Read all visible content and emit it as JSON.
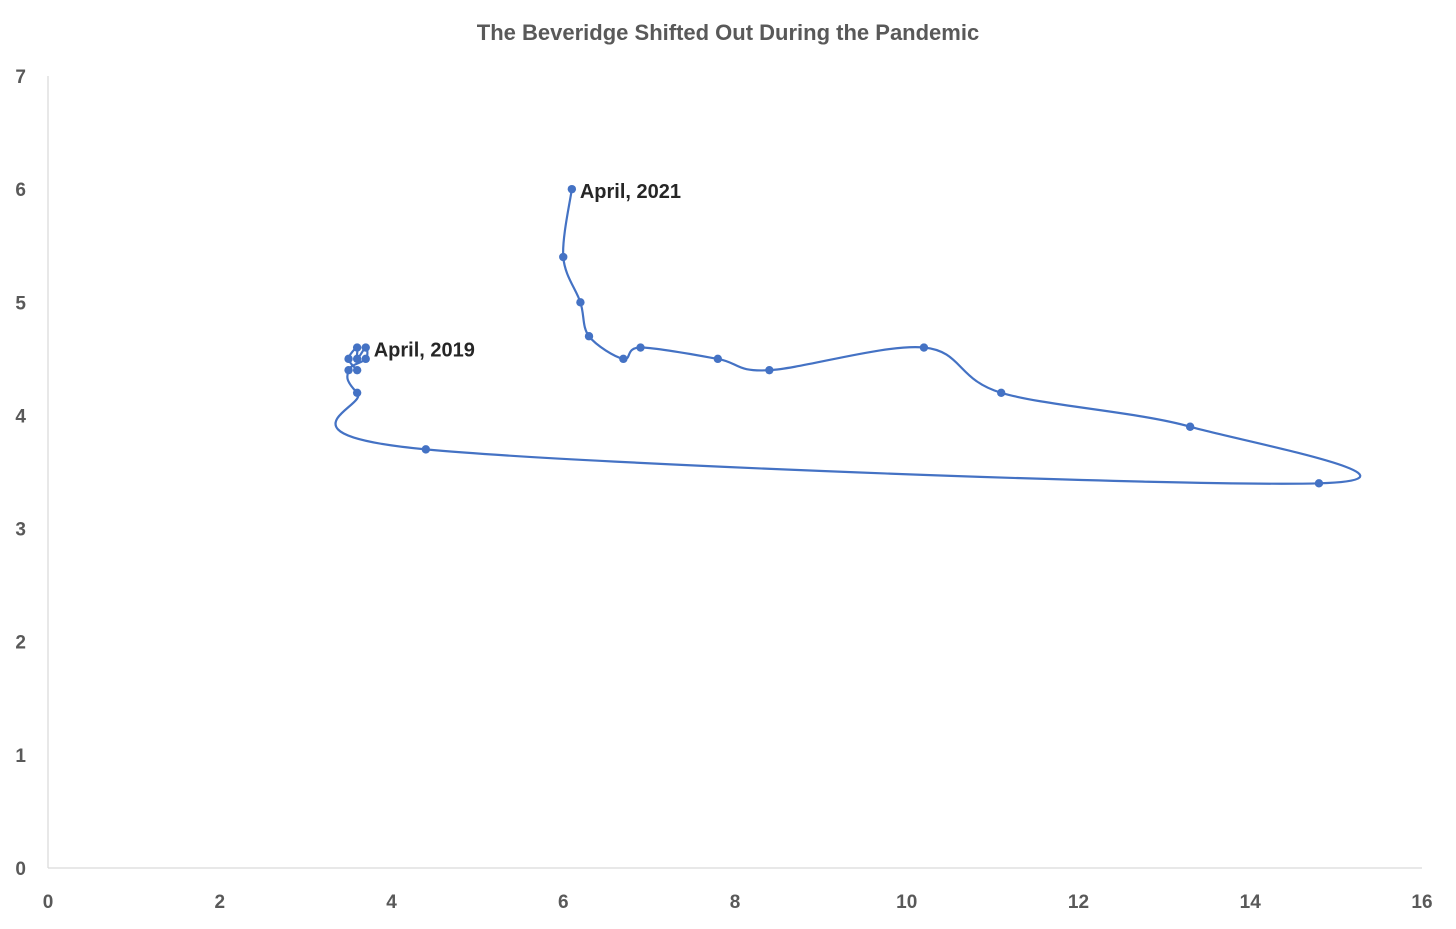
{
  "chart_data": {
    "type": "scatter",
    "title": "The Beveridge Shifted Out During the Pandemic",
    "xlabel": "",
    "ylabel": "",
    "xlim": [
      0,
      16
    ],
    "ylim": [
      0,
      7
    ],
    "x_ticks": [
      "0",
      "2",
      "4",
      "6",
      "8",
      "10",
      "12",
      "14",
      "16"
    ],
    "y_ticks": [
      "0",
      "1",
      "2",
      "3",
      "4",
      "5",
      "6",
      "7"
    ],
    "grid": false,
    "legend": "none",
    "smooth_line": true,
    "series": [
      {
        "color": "#4472c4",
        "points": [
          {
            "x": 3.6,
            "y": 4.4
          },
          {
            "x": 3.5,
            "y": 4.5
          },
          {
            "x": 3.6,
            "y": 4.6
          },
          {
            "x": 3.6,
            "y": 4.5
          },
          {
            "x": 3.7,
            "y": 4.6
          },
          {
            "x": 3.7,
            "y": 4.5
          },
          {
            "x": 3.5,
            "y": 4.4
          },
          {
            "x": 3.6,
            "y": 4.2
          },
          {
            "x": 4.4,
            "y": 3.7
          },
          {
            "x": 14.8,
            "y": 3.4
          },
          {
            "x": 13.3,
            "y": 3.9
          },
          {
            "x": 11.1,
            "y": 4.2
          },
          {
            "x": 10.2,
            "y": 4.6
          },
          {
            "x": 8.4,
            "y": 4.4
          },
          {
            "x": 7.8,
            "y": 4.5
          },
          {
            "x": 6.9,
            "y": 4.6
          },
          {
            "x": 6.7,
            "y": 4.5
          },
          {
            "x": 6.3,
            "y": 4.7
          },
          {
            "x": 6.2,
            "y": 5.0
          },
          {
            "x": 6.0,
            "y": 5.4
          },
          {
            "x": 6.1,
            "y": 6.0
          }
        ]
      }
    ],
    "annotations": [
      {
        "text": "April, 2019",
        "x": 3.7,
        "y": 4.6
      },
      {
        "text": "April, 2021",
        "x": 6.1,
        "y": 6.0
      }
    ]
  }
}
